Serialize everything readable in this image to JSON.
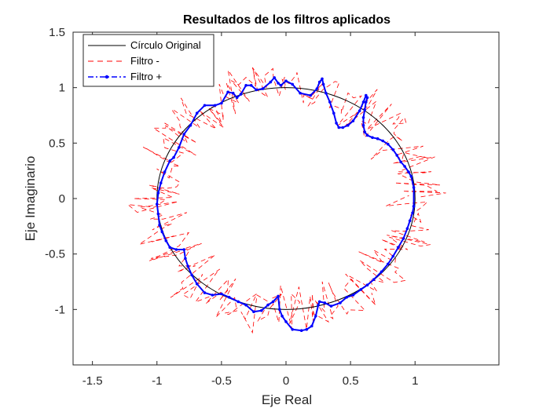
{
  "chart_data": {
    "type": "line",
    "title": "Resultados de los filtros aplicados",
    "xlabel": "Eje Real",
    "ylabel": "Eje Imaginario",
    "xlim": [
      -1.65,
      1.65
    ],
    "ylim": [
      -1.5,
      1.5
    ],
    "xticks": [
      -1.5,
      -1,
      -0.5,
      0,
      0.5,
      1
    ],
    "xtick_labels": [
      "-1.5",
      "-1",
      "-0.5",
      "0",
      "0.5",
      "1"
    ],
    "yticks": [
      -1,
      -0.5,
      0,
      0.5,
      1,
      1.5
    ],
    "ytick_labels": [
      "-1",
      "-0.5",
      "0",
      "0.5",
      "1",
      "1.5"
    ],
    "legend_position": "top-left",
    "series": [
      {
        "name": "Círculo Original",
        "color": "#000000",
        "style": "solid",
        "shape": "circle",
        "center": [
          0,
          0
        ],
        "radius": 1.0
      },
      {
        "name": "Filtro -",
        "color": "#ff0000",
        "style": "dashed",
        "shape": "noisy-circle",
        "center": [
          0,
          0
        ],
        "radius": 1.0,
        "noise": 0.22
      },
      {
        "name": "Filtro +",
        "color": "#0000ff",
        "style": "dash-dot-markers",
        "points": [
          [
            0.99,
            -0.07
          ],
          [
            0.99,
            0.1
          ],
          [
            0.97,
            0.2
          ],
          [
            0.95,
            0.24
          ],
          [
            0.92,
            0.29
          ],
          [
            0.89,
            0.33
          ],
          [
            0.86,
            0.39
          ],
          [
            0.83,
            0.44
          ],
          [
            0.79,
            0.49
          ],
          [
            0.75,
            0.52
          ],
          [
            0.71,
            0.54
          ],
          [
            0.67,
            0.55
          ],
          [
            0.63,
            0.57
          ],
          [
            0.61,
            0.6
          ],
          [
            0.6,
            0.66
          ],
          [
            0.6,
            0.73
          ],
          [
            0.61,
            0.8
          ],
          [
            0.62,
            0.87
          ],
          [
            0.63,
            0.91
          ],
          [
            0.62,
            0.93
          ],
          [
            0.6,
            0.87
          ],
          [
            0.57,
            0.79
          ],
          [
            0.52,
            0.7
          ],
          [
            0.48,
            0.66
          ],
          [
            0.44,
            0.64
          ],
          [
            0.41,
            0.64
          ],
          [
            0.39,
            0.68
          ],
          [
            0.37,
            0.77
          ],
          [
            0.34,
            0.87
          ],
          [
            0.31,
            0.95
          ],
          [
            0.29,
            1.03
          ],
          [
            0.28,
            1.08
          ],
          [
            0.26,
            1.05
          ],
          [
            0.24,
            0.99
          ],
          [
            0.19,
            0.93
          ],
          [
            0.11,
            0.95
          ],
          [
            0.05,
            1.03
          ],
          [
            0.0,
            1.06
          ],
          [
            -0.04,
            1.02
          ],
          [
            -0.06,
            1.04
          ],
          [
            -0.09,
            1.09
          ],
          [
            -0.12,
            1.05
          ],
          [
            -0.18,
            0.99
          ],
          [
            -0.23,
            0.98
          ],
          [
            -0.27,
            1.02
          ],
          [
            -0.31,
            1.02
          ],
          [
            -0.35,
            0.94
          ],
          [
            -0.38,
            0.91
          ],
          [
            -0.41,
            0.95
          ],
          [
            -0.45,
            0.96
          ],
          [
            -0.5,
            0.86
          ],
          [
            -0.55,
            0.84
          ],
          [
            -0.63,
            0.84
          ],
          [
            -0.69,
            0.77
          ],
          [
            -0.74,
            0.66
          ],
          [
            -0.79,
            0.58
          ],
          [
            -0.83,
            0.46
          ],
          [
            -0.87,
            0.37
          ],
          [
            -0.9,
            0.34
          ],
          [
            -0.94,
            0.24
          ],
          [
            -0.97,
            0.14
          ],
          [
            -0.99,
            0.05
          ],
          [
            -1.0,
            -0.05
          ],
          [
            -0.99,
            -0.14
          ],
          [
            -0.98,
            -0.24
          ],
          [
            -0.96,
            -0.3
          ],
          [
            -0.93,
            -0.38
          ],
          [
            -0.9,
            -0.44
          ],
          [
            -0.85,
            -0.46
          ],
          [
            -0.79,
            -0.46
          ],
          [
            -0.78,
            -0.54
          ],
          [
            -0.76,
            -0.61
          ],
          [
            -0.73,
            -0.69
          ],
          [
            -0.69,
            -0.77
          ],
          [
            -0.63,
            -0.85
          ],
          [
            -0.57,
            -0.87
          ],
          [
            -0.5,
            -0.86
          ],
          [
            -0.44,
            -0.89
          ],
          [
            -0.37,
            -0.93
          ],
          [
            -0.31,
            -0.96
          ],
          [
            -0.25,
            -1.02
          ],
          [
            -0.19,
            -1.01
          ],
          [
            -0.14,
            -0.96
          ],
          [
            -0.1,
            -0.93
          ],
          [
            -0.06,
            -0.88
          ],
          [
            -0.05,
            -1.0
          ],
          [
            -0.03,
            -1.06
          ],
          [
            0.0,
            -1.11
          ],
          [
            0.05,
            -1.18
          ],
          [
            0.12,
            -1.19
          ],
          [
            0.16,
            -1.18
          ],
          [
            0.2,
            -1.15
          ],
          [
            0.23,
            -1.06
          ],
          [
            0.25,
            -0.96
          ],
          [
            0.26,
            -0.93
          ],
          [
            0.3,
            -0.94
          ],
          [
            0.35,
            -0.97
          ],
          [
            0.42,
            -0.94
          ],
          [
            0.47,
            -0.89
          ],
          [
            0.52,
            -0.87
          ],
          [
            0.58,
            -0.82
          ],
          [
            0.63,
            -0.78
          ],
          [
            0.68,
            -0.73
          ],
          [
            0.74,
            -0.66
          ],
          [
            0.79,
            -0.59
          ],
          [
            0.83,
            -0.52
          ],
          [
            0.87,
            -0.44
          ],
          [
            0.91,
            -0.36
          ],
          [
            0.94,
            -0.27
          ],
          [
            0.96,
            -0.2
          ],
          [
            0.98,
            -0.13
          ],
          [
            0.99,
            -0.07
          ]
        ]
      }
    ]
  }
}
